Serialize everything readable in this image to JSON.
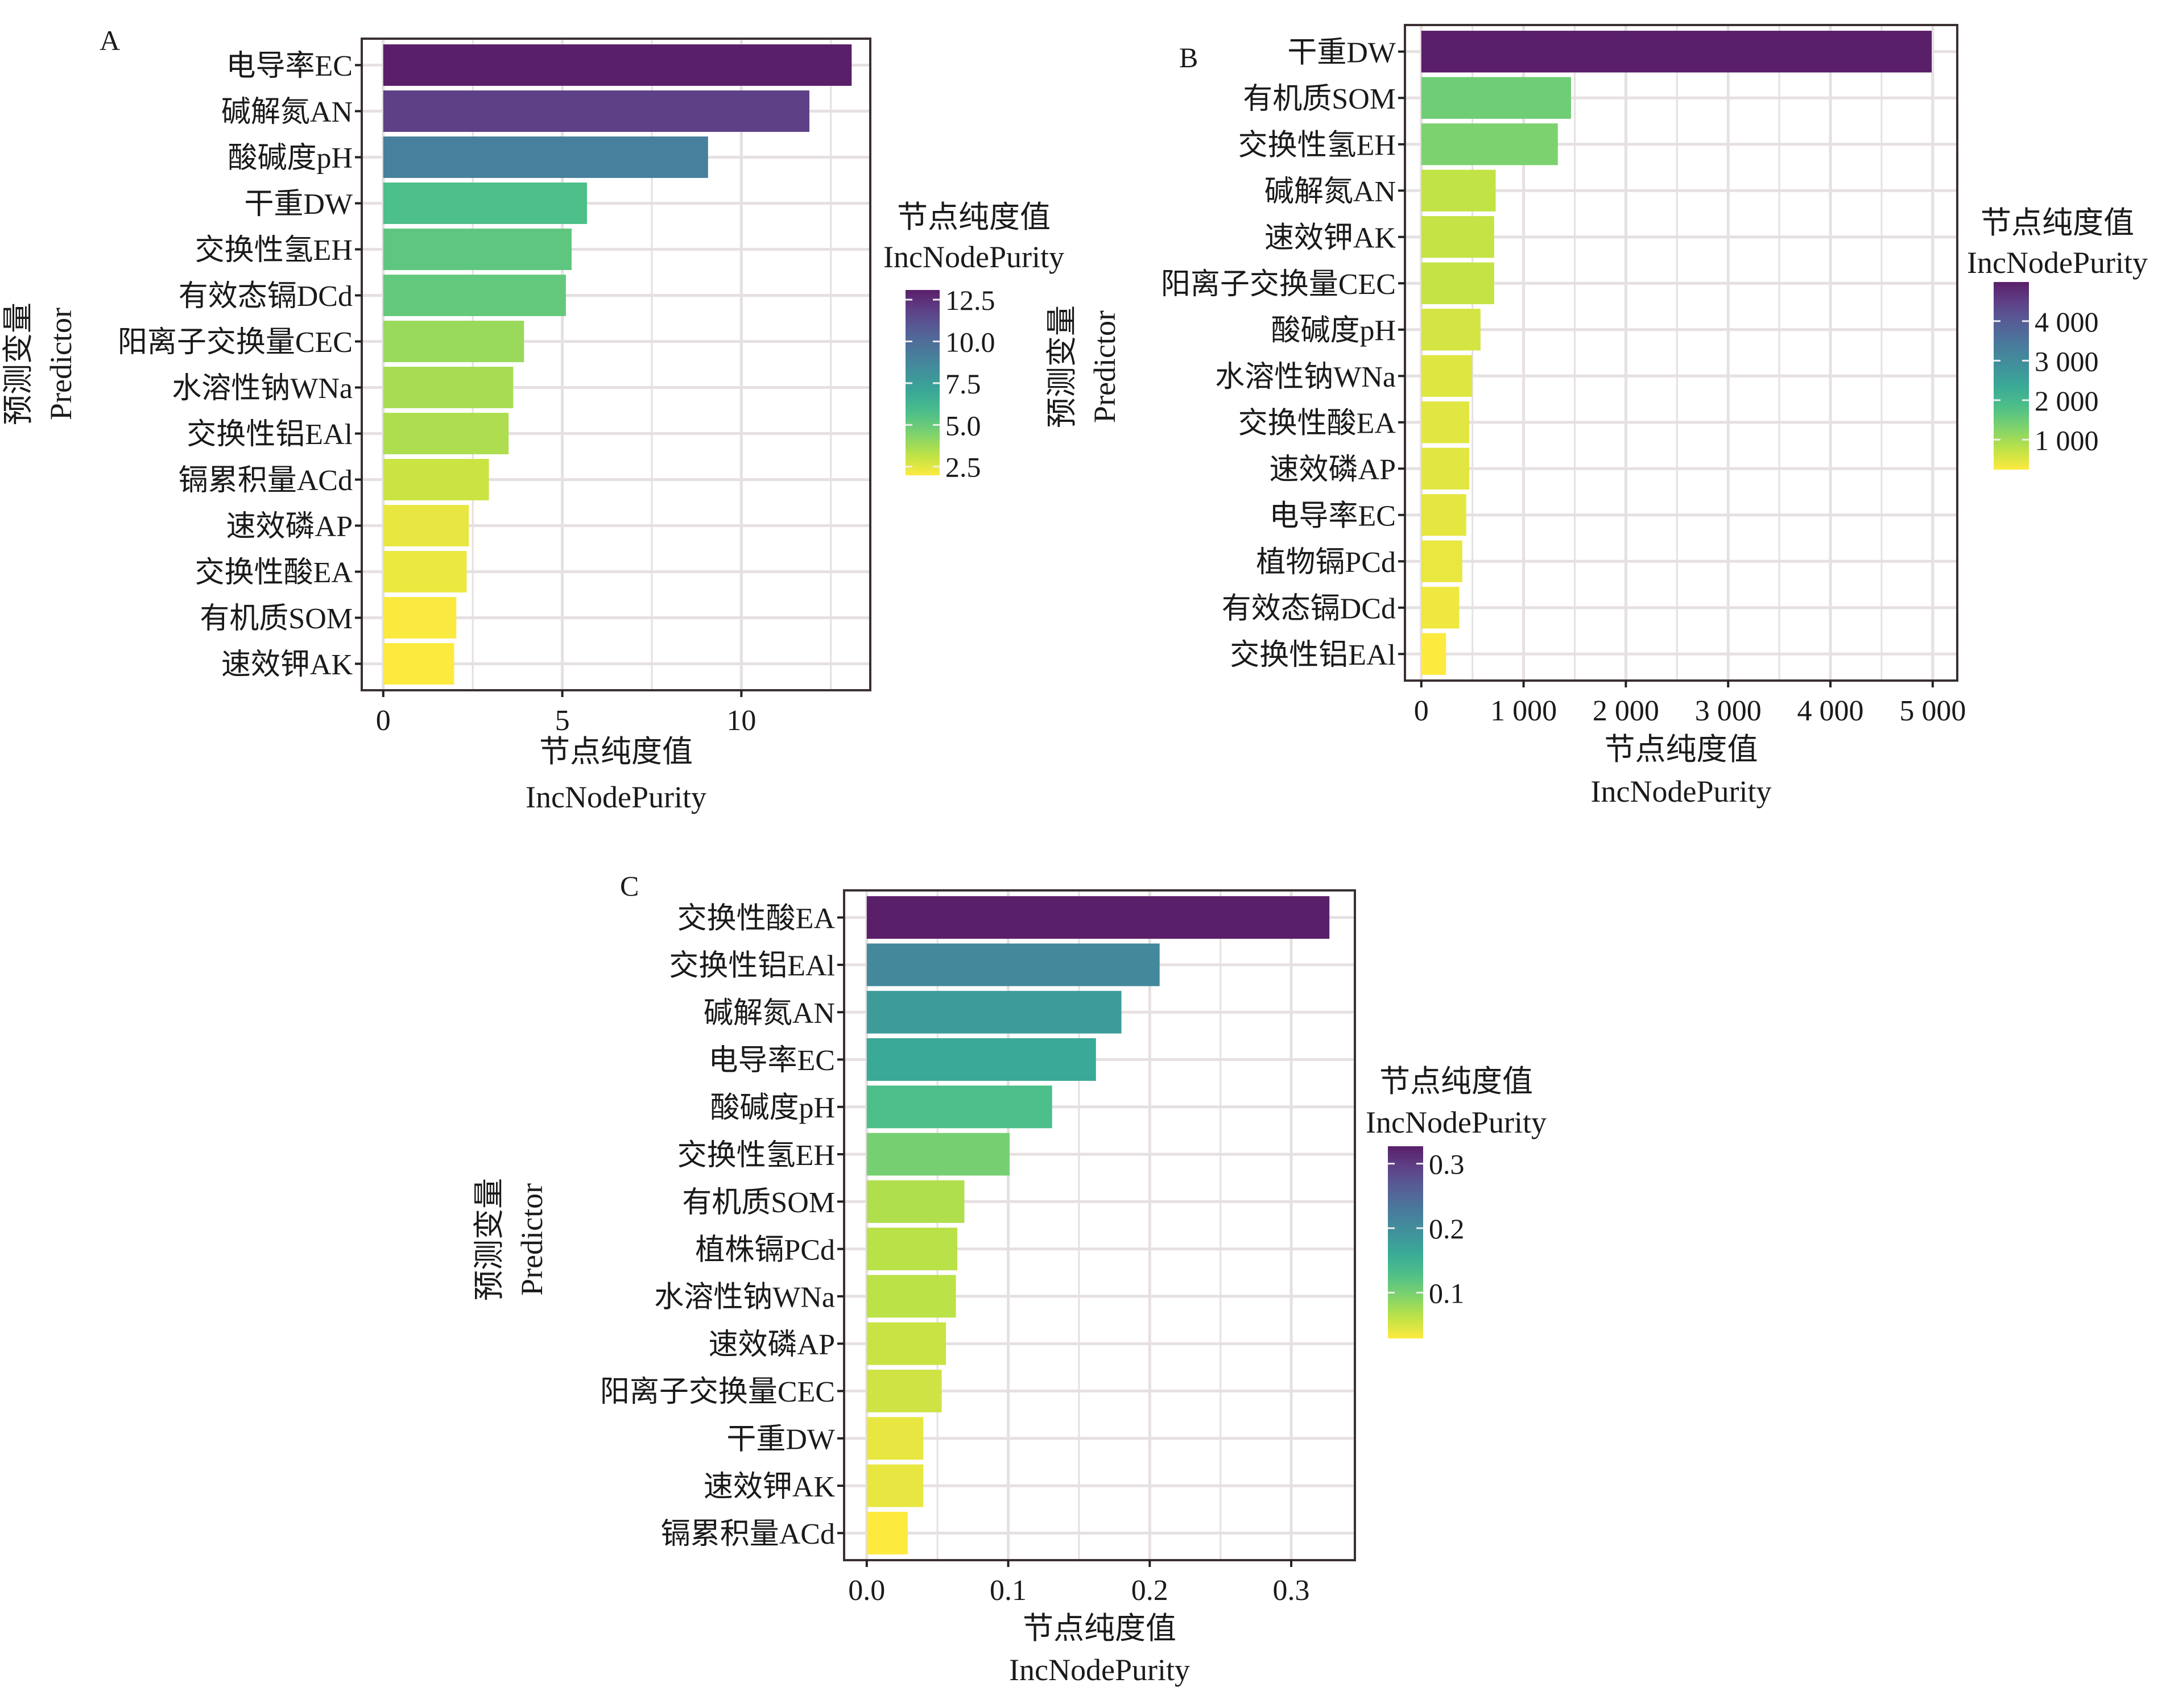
{
  "figure": {
    "panels": [
      "A",
      "B",
      "C"
    ]
  },
  "chart_data": [
    {
      "type": "bar",
      "orientation": "horizontal",
      "panel_label": "A",
      "title": "",
      "xlabel": [
        "节点纯度值",
        "IncNodePurity"
      ],
      "ylabel": [
        "预测变量",
        "Predictor"
      ],
      "categories": [
        "电导率EC",
        "碱解氮AN",
        "酸碱度pH",
        "干重DW",
        "交换性氢EH",
        "有效态镉DCd",
        "阳离子交换量CEC",
        "水溶性钠WNa",
        "交换性铝EAl",
        "镉累积量ACd",
        "速效磷AP",
        "交换性酸EA",
        "有机质SOM",
        "速效钾AK"
      ],
      "values": [
        13.08,
        11.9,
        9.07,
        5.69,
        5.26,
        5.1,
        3.93,
        3.63,
        3.5,
        2.95,
        2.39,
        2.33,
        2.04,
        1.98
      ],
      "xlim": [
        -0.6,
        13.6
      ],
      "xticks": [
        0,
        5,
        10
      ],
      "xtick_labels": [
        "0",
        "5",
        "10"
      ],
      "xgrid_minor": [
        2.5,
        7.5,
        12.5
      ],
      "grid": true,
      "legend": {
        "title": [
          "节点纯度值",
          "IncNodePurity"
        ],
        "type": "colorbar",
        "colormap": "viridis (reversed)",
        "range": [
          1.98,
          13.08
        ],
        "ticks": [
          2.5,
          5.0,
          7.5,
          10.0,
          12.5
        ],
        "tick_labels": [
          "2.5",
          "5.0",
          "7.5",
          "10.0",
          "12.5"
        ],
        "placement": "right"
      }
    },
    {
      "type": "bar",
      "orientation": "horizontal",
      "panel_label": "B",
      "title": "",
      "xlabel": [
        "节点纯度值",
        "IncNodePurity"
      ],
      "ylabel": [
        "预测变量",
        "Predictor"
      ],
      "categories": [
        "干重DW",
        "有机质SOM",
        "交换性氢EH",
        "碱解氮AN",
        "速效钾AK",
        "阳离子交换量CEC",
        "酸碱度pH",
        "水溶性钠WNa",
        "交换性酸EA",
        "速效磷AP",
        "电导率EC",
        "植物镉PCd",
        "有效态镉DCd",
        "交换性铝EAl"
      ],
      "values": [
        4990,
        1464,
        1335,
        727,
        712,
        712,
        579,
        497,
        469,
        469,
        439,
        401,
        371,
        242
      ],
      "xlim": [
        -160,
        5240
      ],
      "xticks": [
        0,
        1000,
        2000,
        3000,
        4000,
        5000
      ],
      "xtick_labels": [
        "0",
        "1 000",
        "2 000",
        "3 000",
        "4 000",
        "5 000"
      ],
      "xgrid_minor": [
        500,
        1500,
        2500,
        3500,
        4500
      ],
      "grid": true,
      "legend": {
        "title": [
          "节点纯度值",
          "IncNodePurity"
        ],
        "type": "colorbar",
        "colormap": "viridis (reversed)",
        "range": [
          242,
          4990
        ],
        "ticks": [
          1000,
          2000,
          3000,
          4000
        ],
        "tick_labels": [
          "1 000",
          "2 000",
          "3 000",
          "4 000"
        ],
        "placement": "right"
      }
    },
    {
      "type": "bar",
      "orientation": "horizontal",
      "panel_label": "C",
      "title": "",
      "xlabel": [
        "节点纯度值",
        "IncNodePurity"
      ],
      "ylabel": [
        "预测变量",
        "Predictor"
      ],
      "categories": [
        "交换性酸EA",
        "交换性铝EAl",
        "碱解氮AN",
        "电导率EC",
        "酸碱度pH",
        "交换性氢EH",
        "有机质SOM",
        "植株镉PCd",
        "水溶性钠WNa",
        "速效磷AP",
        "阳离子交换量CEC",
        "干重DW",
        "速效钾AK",
        "镉累积量ACd"
      ],
      "values": [
        0.327,
        0.207,
        0.18,
        0.162,
        0.131,
        0.101,
        0.069,
        0.064,
        0.063,
        0.056,
        0.053,
        0.04,
        0.04,
        0.029
      ],
      "xlim": [
        -0.016,
        0.345
      ],
      "xticks": [
        0.0,
        0.1,
        0.2,
        0.3
      ],
      "xtick_labels": [
        "0.0",
        "0.1",
        "0.2",
        "0.3"
      ],
      "xgrid_minor": [
        0.05,
        0.15,
        0.25
      ],
      "grid": true,
      "legend": {
        "title": [
          "节点纯度值",
          "IncNodePurity"
        ],
        "type": "colorbar",
        "colormap": "viridis (reversed)",
        "range": [
          0.029,
          0.327
        ],
        "ticks": [
          0.1,
          0.2,
          0.3
        ],
        "tick_labels": [
          "0.1",
          "0.2",
          "0.3"
        ],
        "placement": "right"
      }
    }
  ],
  "colors": {
    "frame": "#3a3030",
    "grid": "#e6e0e0",
    "text": "#1a1a1a"
  }
}
